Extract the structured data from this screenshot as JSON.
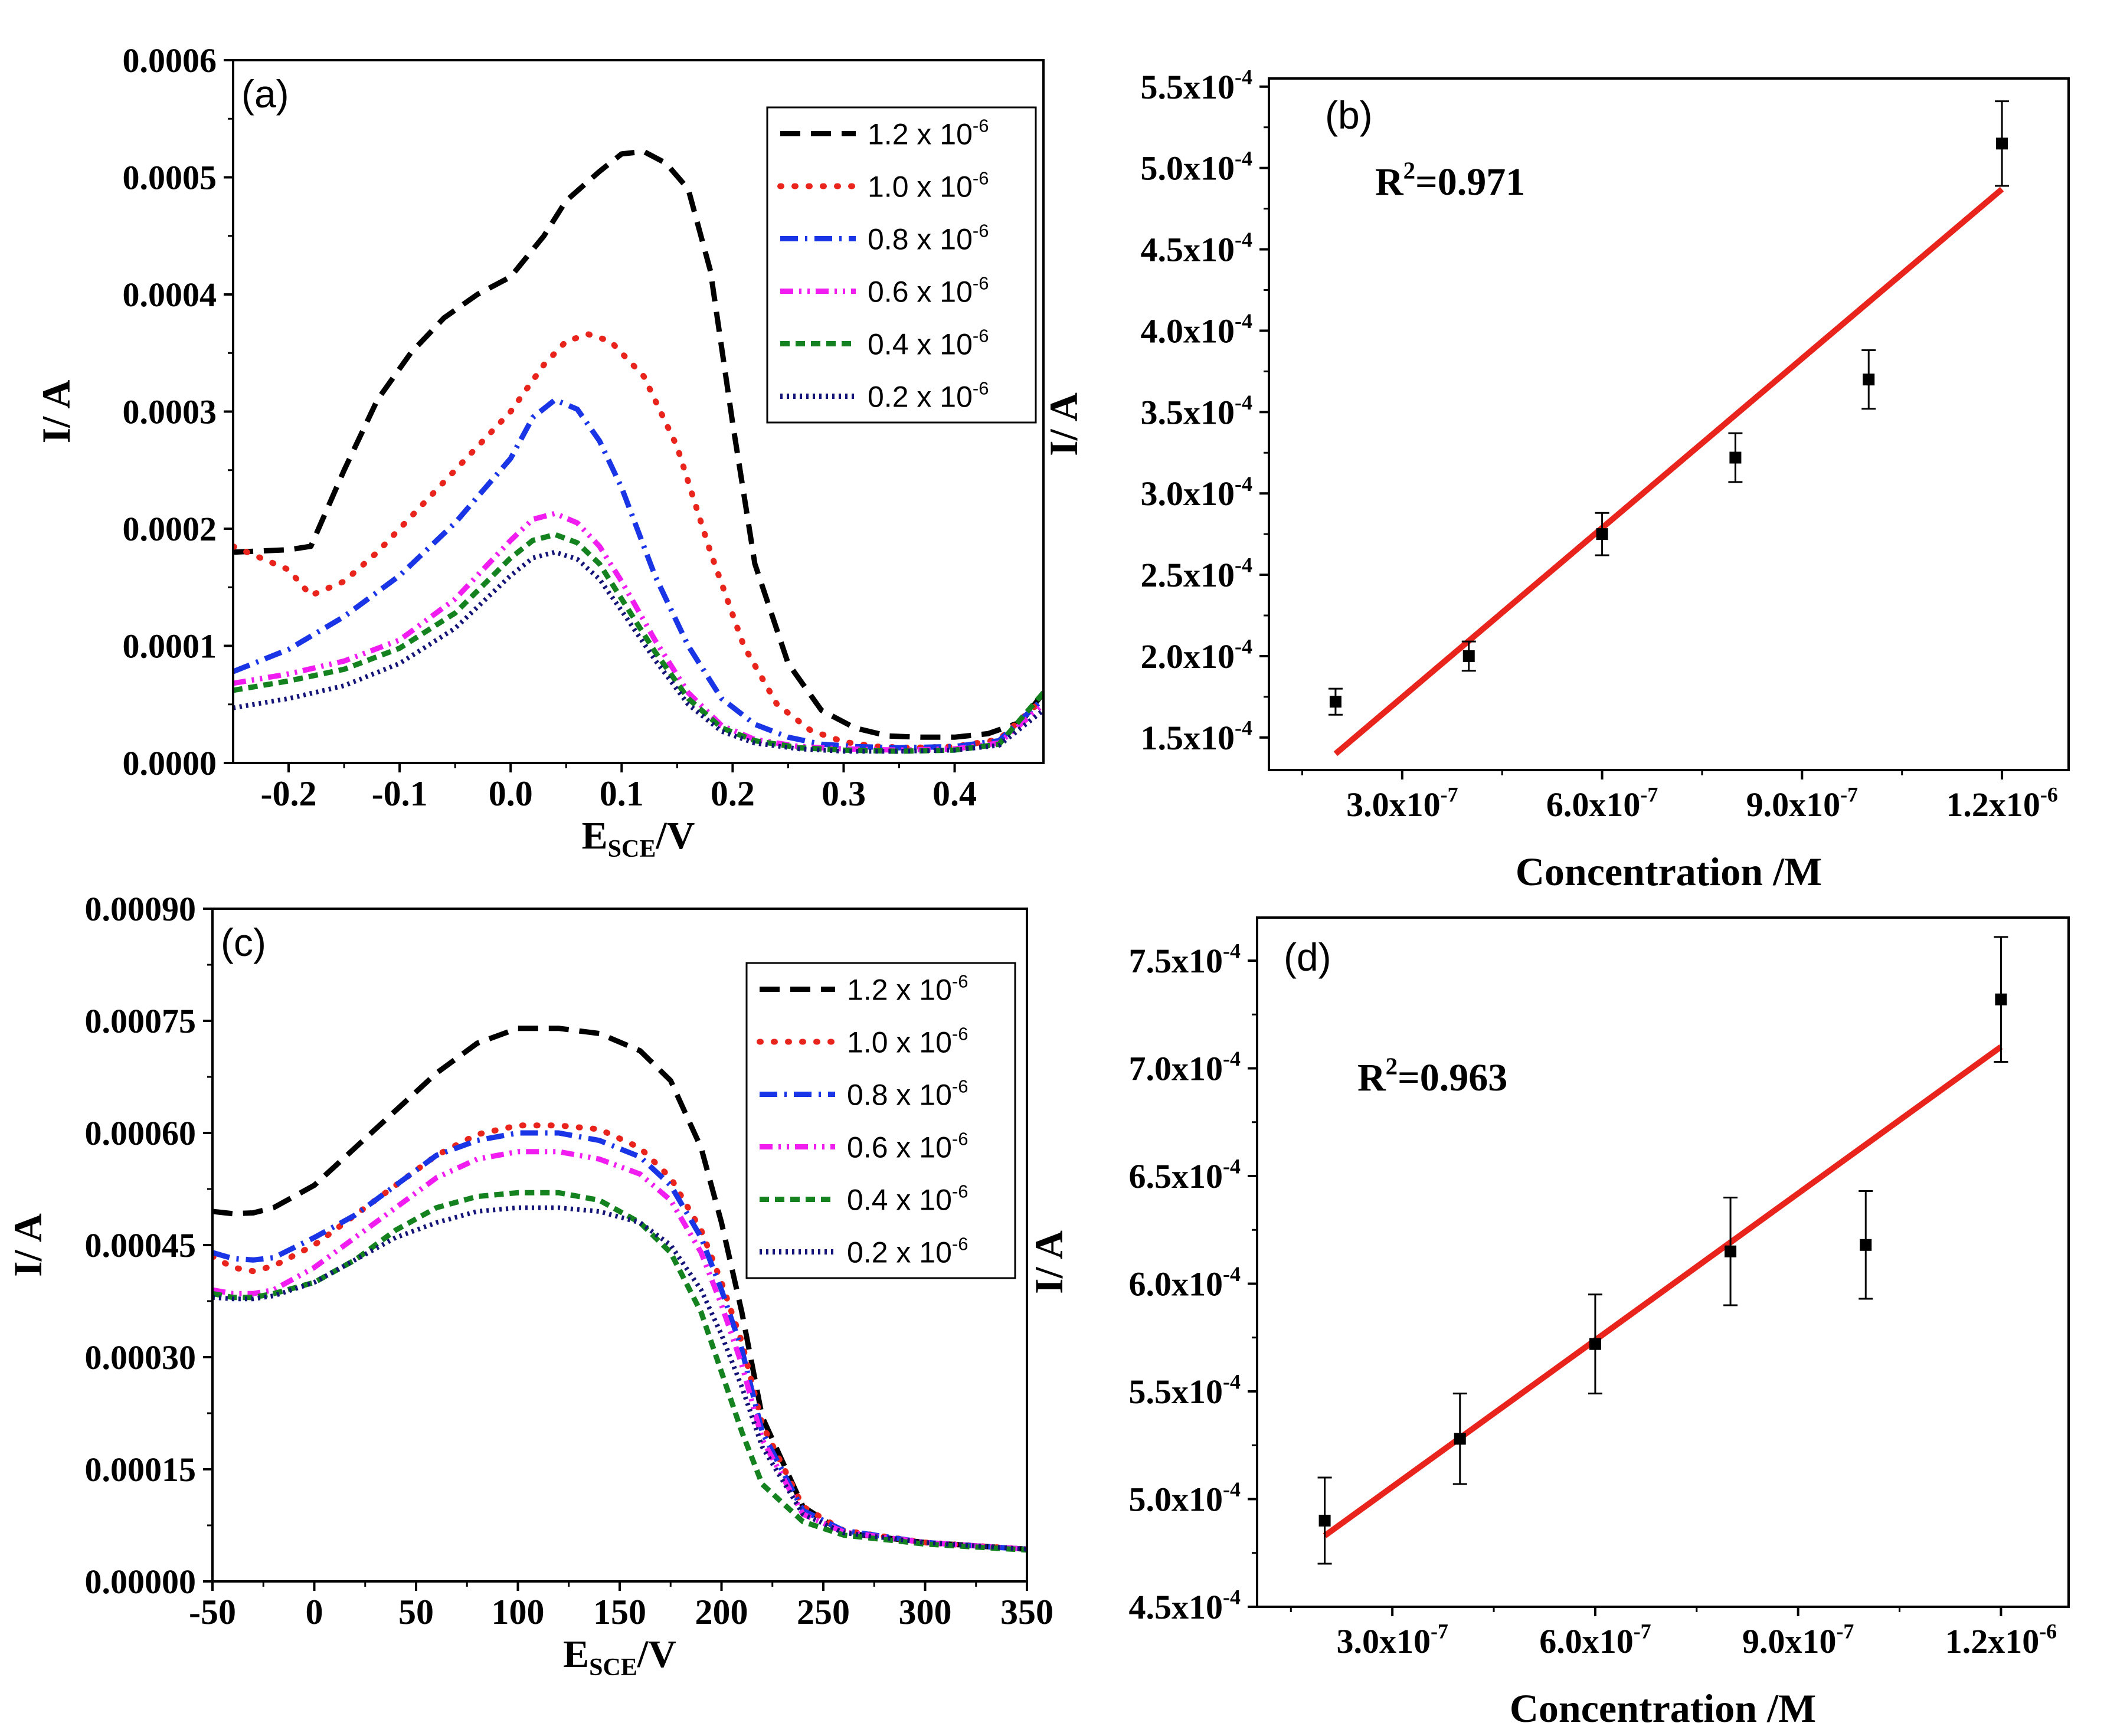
{
  "figure": {
    "panel_labels": [
      "(a)",
      "(b)",
      "(c)",
      "(d)"
    ]
  },
  "chart_data": [
    {
      "id": "a",
      "type": "line",
      "panel_label": "(a)",
      "xlabel_main": "E",
      "xlabel_sub": "SCE",
      "xlabel_tail": "/V",
      "ylabel": "I/ A",
      "xlim": [
        -0.25,
        0.48
      ],
      "ylim": [
        0,
        0.0006
      ],
      "xticks": [
        -0.2,
        -0.1,
        0.0,
        0.1,
        0.2,
        0.3,
        0.4
      ],
      "xtick_labels": [
        "-0.2",
        "-0.1",
        "0.0",
        "0.1",
        "0.2",
        "0.3",
        "0.4"
      ],
      "yticks": [
        0,
        0.0001,
        0.0002,
        0.0003,
        0.0004,
        0.0005,
        0.0006
      ],
      "ytick_labels": [
        "0.0000",
        "0.0001",
        "0.0002",
        "0.0003",
        "0.0004",
        "0.0005",
        "0.0006"
      ],
      "legend_position": "top-right",
      "series": [
        {
          "name": "1.2 x 10",
          "exp": "-6",
          "color": "#000000",
          "dash": "dash",
          "x": [
            -0.25,
            -0.2,
            -0.18,
            -0.15,
            -0.12,
            -0.09,
            -0.06,
            -0.03,
            0.0,
            0.03,
            0.05,
            0.08,
            0.1,
            0.12,
            0.14,
            0.16,
            0.18,
            0.2,
            0.22,
            0.25,
            0.28,
            0.31,
            0.34,
            0.37,
            0.4,
            0.43,
            0.46,
            0.48
          ],
          "y": [
            0.00018,
            0.000182,
            0.000185,
            0.00025,
            0.00031,
            0.00035,
            0.00038,
            0.0004,
            0.000415,
            0.00045,
            0.00048,
            0.000505,
            0.00052,
            0.000522,
            0.000512,
            0.00049,
            0.00042,
            0.00029,
            0.00017,
            8.5e-05,
            4.5e-05,
            3e-05,
            2.3e-05,
            2.2e-05,
            2.2e-05,
            2.5e-05,
            3.5e-05,
            6e-05
          ]
        },
        {
          "name": "1.0 x 10",
          "exp": "-6",
          "color": "#e8241c",
          "dash": "dot",
          "x": [
            -0.25,
            -0.2,
            -0.18,
            -0.15,
            -0.12,
            -0.08,
            -0.04,
            0.0,
            0.03,
            0.05,
            0.07,
            0.09,
            0.12,
            0.15,
            0.18,
            0.21,
            0.24,
            0.27,
            0.3,
            0.33,
            0.36,
            0.4,
            0.44,
            0.48
          ],
          "y": [
            0.000185,
            0.000165,
            0.000143,
            0.000155,
            0.00018,
            0.00022,
            0.00026,
            0.0003,
            0.00034,
            0.00036,
            0.000366,
            0.00036,
            0.00033,
            0.00027,
            0.00018,
            0.0001,
            5e-05,
            2.8e-05,
            1.8e-05,
            1.4e-05,
            1.3e-05,
            1.4e-05,
            2e-05,
            5.5e-05
          ]
        },
        {
          "name": "0.8 x 10",
          "exp": "-6",
          "color": "#1a35e6",
          "dash": "dashdot",
          "x": [
            -0.25,
            -0.2,
            -0.15,
            -0.1,
            -0.05,
            0.0,
            0.02,
            0.04,
            0.06,
            0.08,
            0.1,
            0.13,
            0.16,
            0.19,
            0.22,
            0.25,
            0.28,
            0.31,
            0.35,
            0.4,
            0.44,
            0.48
          ],
          "y": [
            7.8e-05,
            9.7e-05,
            0.000125,
            0.00016,
            0.000205,
            0.00026,
            0.000295,
            0.00031,
            0.000302,
            0.000275,
            0.000235,
            0.00016,
            0.0001,
            5.5e-05,
            3.3e-05,
            2.2e-05,
            1.6e-05,
            1.4e-05,
            1.3e-05,
            1.4e-05,
            1.9e-05,
            5.5e-05
          ]
        },
        {
          "name": "0.6 x 10",
          "exp": "-6",
          "color": "#f01cf0",
          "dash": "dashdotdot",
          "x": [
            -0.25,
            -0.2,
            -0.15,
            -0.1,
            -0.05,
            0.0,
            0.02,
            0.04,
            0.06,
            0.08,
            0.1,
            0.13,
            0.16,
            0.19,
            0.22,
            0.26,
            0.3,
            0.35,
            0.4,
            0.44,
            0.48
          ],
          "y": [
            6.8e-05,
            7.6e-05,
            8.7e-05,
            0.000105,
            0.00014,
            0.00019,
            0.000208,
            0.000213,
            0.000205,
            0.000185,
            0.000155,
            0.000105,
            6e-05,
            3.2e-05,
            2e-05,
            1.4e-05,
            1.2e-05,
            1.1e-05,
            1.2e-05,
            1.7e-05,
            5e-05
          ]
        },
        {
          "name": "0.4 x 10",
          "exp": "-6",
          "color": "#13821f",
          "dash": "shortdash",
          "x": [
            -0.25,
            -0.2,
            -0.15,
            -0.1,
            -0.05,
            0.0,
            0.02,
            0.04,
            0.06,
            0.08,
            0.1,
            0.13,
            0.16,
            0.19,
            0.22,
            0.26,
            0.3,
            0.35,
            0.4,
            0.44,
            0.48
          ],
          "y": [
            6.2e-05,
            7e-05,
            8e-05,
            9.8e-05,
            0.000128,
            0.000175,
            0.00019,
            0.000195,
            0.000188,
            0.00017,
            0.00014,
            9.5e-05,
            5.5e-05,
            3e-05,
            1.9e-05,
            1.3e-05,
            1.1e-05,
            1e-05,
            1.1e-05,
            1.6e-05,
            6e-05
          ]
        },
        {
          "name": "0.2 x 10",
          "exp": "-6",
          "color": "#141478",
          "dash": "fineDot",
          "x": [
            -0.25,
            -0.2,
            -0.15,
            -0.1,
            -0.05,
            0.0,
            0.02,
            0.04,
            0.06,
            0.08,
            0.1,
            0.13,
            0.16,
            0.19,
            0.22,
            0.26,
            0.3,
            0.35,
            0.4,
            0.44,
            0.48
          ],
          "y": [
            4.7e-05,
            5.5e-05,
            6.6e-05,
            8.5e-05,
            0.000115,
            0.00016,
            0.000175,
            0.00018,
            0.000174,
            0.000157,
            0.00013,
            8.8e-05,
            5e-05,
            2.7e-05,
            1.7e-05,
            1.2e-05,
            1e-05,
            1e-05,
            1.1e-05,
            1.5e-05,
            4.5e-05
          ]
        }
      ]
    },
    {
      "id": "b",
      "type": "scatter",
      "panel_label": "(b)",
      "xlabel": "Concentration /M",
      "ylabel": "I/ A",
      "annotation_main": "R",
      "annotation_sup": "2",
      "annotation_tail": "=0.971",
      "xlim": [
        1e-07,
        1.3e-06
      ],
      "ylim": [
        0.00013,
        0.000555
      ],
      "xticks": [
        3e-07,
        6e-07,
        9e-07,
        1.2e-06
      ],
      "xtick_labels": [
        [
          "3.0x10",
          "-7"
        ],
        [
          "6.0x10",
          "-7"
        ],
        [
          "9.0x10",
          "-7"
        ],
        [
          "1.2x10",
          "-6"
        ]
      ],
      "yticks": [
        0.00015,
        0.0002,
        0.00025,
        0.0003,
        0.00035,
        0.0004,
        0.00045,
        0.0005,
        0.00055
      ],
      "ytick_labels": [
        [
          "1.5x10",
          "-4"
        ],
        [
          "2.0x10",
          "-4"
        ],
        [
          "2.5x10",
          "-4"
        ],
        [
          "3.0x10",
          "-4"
        ],
        [
          "3.5x10",
          "-4"
        ],
        [
          "4.0x10",
          "-4"
        ],
        [
          "4.5x10",
          "-4"
        ],
        [
          "5.0x10",
          "-4"
        ],
        [
          "5.5x10",
          "-4"
        ]
      ],
      "points": {
        "x": [
          2e-07,
          4e-07,
          6e-07,
          8e-07,
          1e-06,
          1.2e-06
        ],
        "y": [
          0.000172,
          0.0002,
          0.000275,
          0.000322,
          0.00037,
          0.000515
        ],
        "err": [
          8e-06,
          9e-06,
          1.3e-05,
          1.5e-05,
          1.8e-05,
          2.6e-05
        ]
      },
      "fit": {
        "x": [
          2e-07,
          1.2e-06
        ],
        "y": [
          0.00014,
          0.000487
        ],
        "color": "#e8241c"
      }
    },
    {
      "id": "c",
      "type": "line",
      "panel_label": "(c)",
      "xlabel_main": "E",
      "xlabel_sub": "SCE",
      "xlabel_tail": "/V",
      "ylabel": "I/ A",
      "xlim": [
        -50,
        350
      ],
      "ylim": [
        0,
        0.0009
      ],
      "xticks": [
        -50,
        0,
        50,
        100,
        150,
        200,
        250,
        300,
        350
      ],
      "xtick_labels": [
        "-50",
        "0",
        "50",
        "100",
        "150",
        "200",
        "250",
        "300",
        "350"
      ],
      "yticks": [
        0,
        0.00015,
        0.0003,
        0.00045,
        0.0006,
        0.00075,
        0.0009
      ],
      "ytick_labels": [
        "0.00000",
        "0.00015",
        "0.00030",
        "0.00045",
        "0.00060",
        "0.00075",
        "0.00090"
      ],
      "legend_position": "top-right",
      "series": [
        {
          "name": "1.2 x 10",
          "exp": "-6",
          "color": "#000000",
          "dash": "dash",
          "x": [
            -50,
            -40,
            -30,
            -20,
            0,
            20,
            40,
            60,
            80,
            100,
            120,
            140,
            160,
            175,
            190,
            200,
            210,
            220,
            240,
            260,
            300,
            350
          ],
          "y": [
            0.000495,
            0.000492,
            0.000493,
            0.0005,
            0.00053,
            0.00058,
            0.00063,
            0.00068,
            0.00072,
            0.00074,
            0.00074,
            0.000733,
            0.00071,
            0.00067,
            0.00058,
            0.00048,
            0.00036,
            0.00022,
            0.0001,
            6.5e-05,
            5.2e-05,
            4.3e-05
          ]
        },
        {
          "name": "1.0 x 10",
          "exp": "-6",
          "color": "#e8241c",
          "dash": "dot",
          "x": [
            -50,
            -40,
            -30,
            -20,
            0,
            20,
            40,
            60,
            80,
            100,
            120,
            140,
            160,
            175,
            190,
            200,
            210,
            220,
            240,
            260,
            300,
            350
          ],
          "y": [
            0.000435,
            0.00042,
            0.000415,
            0.000422,
            0.00045,
            0.00049,
            0.00053,
            0.00057,
            0.000598,
            0.00061,
            0.00061,
            0.000605,
            0.00058,
            0.00054,
            0.00047,
            0.0004,
            0.00032,
            0.00021,
            0.0001,
            6.8e-05,
            5.2e-05,
            4.3e-05
          ]
        },
        {
          "name": "0.8 x 10",
          "exp": "-6",
          "color": "#1a35e6",
          "dash": "dashdot",
          "x": [
            -50,
            -40,
            -30,
            -20,
            0,
            20,
            40,
            60,
            80,
            100,
            120,
            140,
            160,
            175,
            190,
            200,
            210,
            220,
            240,
            260,
            300,
            350
          ],
          "y": [
            0.00044,
            0.000432,
            0.00043,
            0.000433,
            0.00046,
            0.00049,
            0.00053,
            0.00057,
            0.00059,
            0.0006,
            0.0006,
            0.00059,
            0.000568,
            0.00053,
            0.00046,
            0.00039,
            0.00031,
            0.0002,
            9.5e-05,
            6.8e-05,
            5.2e-05,
            4.3e-05
          ]
        },
        {
          "name": "0.6 x 10",
          "exp": "-6",
          "color": "#f01cf0",
          "dash": "dashdotdot",
          "x": [
            -50,
            -40,
            -30,
            -20,
            0,
            20,
            40,
            60,
            80,
            100,
            120,
            140,
            160,
            175,
            190,
            200,
            210,
            220,
            240,
            260,
            300,
            350
          ],
          "y": [
            0.00039,
            0.000385,
            0.000385,
            0.00039,
            0.00042,
            0.00046,
            0.0005,
            0.00054,
            0.000565,
            0.000575,
            0.000575,
            0.000565,
            0.000545,
            0.00051,
            0.00044,
            0.00037,
            0.00029,
            0.00019,
            9e-05,
            6.6e-05,
            5.2e-05,
            4.3e-05
          ]
        },
        {
          "name": "0.4 x 10",
          "exp": "-6",
          "color": "#13821f",
          "dash": "shortdash",
          "x": [
            -50,
            -40,
            -30,
            -20,
            0,
            20,
            40,
            60,
            80,
            100,
            120,
            140,
            160,
            175,
            190,
            200,
            210,
            220,
            240,
            260,
            300,
            350
          ],
          "y": [
            0.000385,
            0.00038,
            0.00038,
            0.000385,
            0.0004,
            0.00043,
            0.00047,
            0.0005,
            0.000515,
            0.00052,
            0.00052,
            0.00051,
            0.00048,
            0.00044,
            0.00036,
            0.00028,
            0.0002,
            0.00013,
            8e-05,
            6.2e-05,
            5e-05,
            4.2e-05
          ]
        },
        {
          "name": "0.2 x 10",
          "exp": "-6",
          "color": "#141478",
          "dash": "fineDot",
          "x": [
            -50,
            -40,
            -30,
            -20,
            0,
            20,
            40,
            60,
            80,
            100,
            120,
            140,
            160,
            175,
            190,
            200,
            210,
            220,
            240,
            260,
            300,
            350
          ],
          "y": [
            0.00038,
            0.000378,
            0.000378,
            0.000382,
            0.0004,
            0.00043,
            0.00046,
            0.00048,
            0.000495,
            0.0005,
            0.0005,
            0.000495,
            0.00048,
            0.00045,
            0.00039,
            0.00033,
            0.00026,
            0.00018,
            9e-05,
            6.5e-05,
            5.2e-05,
            4.3e-05
          ]
        }
      ]
    },
    {
      "id": "d",
      "type": "scatter",
      "panel_label": "(d)",
      "xlabel": "Concentration /M",
      "ylabel": "I/ A",
      "annotation_main": "R",
      "annotation_sup": "2",
      "annotation_tail": "=0.963",
      "xlim": [
        1e-07,
        1.3e-06
      ],
      "ylim": [
        0.00045,
        0.00077
      ],
      "xticks": [
        3e-07,
        6e-07,
        9e-07,
        1.2e-06
      ],
      "xtick_labels": [
        [
          "3.0x10",
          "-7"
        ],
        [
          "6.0x10",
          "-7"
        ],
        [
          "9.0x10",
          "-7"
        ],
        [
          "1.2x10",
          "-6"
        ]
      ],
      "yticks": [
        0.00045,
        0.0005,
        0.00055,
        0.0006,
        0.00065,
        0.0007,
        0.00075
      ],
      "ytick_labels": [
        [
          "4.5x10",
          "-4"
        ],
        [
          "5.0x10",
          "-4"
        ],
        [
          "5.5x10",
          "-4"
        ],
        [
          "6.0x10",
          "-4"
        ],
        [
          "6.5x10",
          "-4"
        ],
        [
          "7.0x10",
          "-4"
        ],
        [
          "7.5x10",
          "-4"
        ]
      ],
      "points": {
        "x": [
          2e-07,
          4e-07,
          6e-07,
          8e-07,
          1e-06,
          1.2e-06
        ],
        "y": [
          0.00049,
          0.000528,
          0.000572,
          0.000615,
          0.000618,
          0.000732
        ],
        "err": [
          2e-05,
          2.1e-05,
          2.3e-05,
          2.5e-05,
          2.5e-05,
          2.9e-05
        ]
      },
      "fit": {
        "x": [
          2e-07,
          1.2e-06
        ],
        "y": [
          0.000483,
          0.00071
        ],
        "color": "#e8241c"
      }
    }
  ]
}
